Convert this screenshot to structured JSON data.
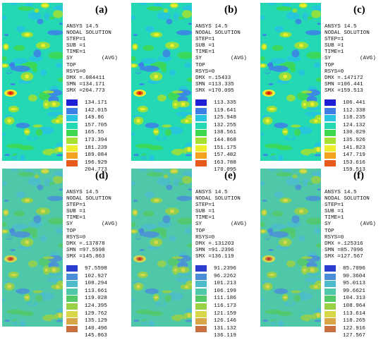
{
  "panels": [
    {
      "label": "(a)",
      "header": [
        "ANSYS 14.5",
        "NODAL SOLUTION",
        "STEP=1",
        "SUB =1",
        "TIME=1"
      ],
      "sy": "SY",
      "avg": "(AVG)",
      "top": "TOP",
      "rsys": "RSYS=0",
      "dmx": "DMX =.084411",
      "smn": "SMN =134.171",
      "smx": "SMX =204.773",
      "legend_values": [
        "134.171",
        "142.015",
        "149.86",
        "157.705",
        "165.55",
        "173.394",
        "181.239",
        "189.084",
        "196.929",
        "204.773"
      ]
    },
    {
      "label": "(b)",
      "header": [
        "ANSYS 14.5",
        "NODAL SOLUTION",
        "STEP=1",
        "SUB =1",
        "TIME=1"
      ],
      "sy": "SY",
      "avg": "(AVG)",
      "top": "TOP",
      "rsys": "RSYS=0",
      "dmx": "DMX =.15433",
      "smn": "SMN =113.335",
      "smx": "SMX =170.095",
      "legend_values": [
        "113.335",
        "119.641",
        "125.948",
        "132.255",
        "138.561",
        "144.868",
        "151.175",
        "157.482",
        "163.788",
        "170.095"
      ]
    },
    {
      "label": "(c)",
      "header": [
        "ANSYS 14.5",
        "NODAL SOLUTION",
        "STEP=1",
        "SUB =1",
        "TIME=1"
      ],
      "sy": "SY",
      "avg": "(AVG)",
      "top": "TOP",
      "rsys": "RSYS=0",
      "dmx": "DMX =.147172",
      "smn": "SMN =106.441",
      "smx": "SMX =159.513",
      "legend_values": [
        "106.441",
        "112.338",
        "118.235",
        "124.132",
        "130.029",
        "135.926",
        "141.823",
        "147.719",
        "153.616",
        "159.513"
      ]
    },
    {
      "label": "(d)",
      "header": [
        "ANSYS 14.5",
        "NODAL SOLUTION",
        "STEP=1",
        "SUB =1",
        "TIME=1"
      ],
      "sy": "SY",
      "avg": "(AVG)",
      "top": "TOP",
      "rsys": "RSYS=0",
      "dmx": "DMX =.137878",
      "smn": "SMN =97.5598",
      "smx": "SMX =145.863",
      "legend_values": [
        "97.5598",
        "102.927",
        "108.294",
        "113.661",
        "119.028",
        "124.395",
        "129.762",
        "135.129",
        "140.496",
        "145.863"
      ]
    },
    {
      "label": "(e)",
      "header": [
        "ANSYS 14.5",
        "NODAL SOLUTION",
        "STEP=1",
        "SUB =1",
        "TIME=1"
      ],
      "sy": "SY",
      "avg": "(AVG)",
      "top": "TOP",
      "rsys": "RSYS=0",
      "dmx": "DMX =.131203",
      "smn": "SMN =91.2396",
      "smx": "SMX =136.119",
      "legend_values": [
        "91.2396",
        "96.2262",
        "101.213",
        "106.199",
        "111.186",
        "116.173",
        "121.159",
        "126.146",
        "131.132",
        "136.119"
      ]
    },
    {
      "label": "(f)",
      "header": [
        "ANSYS 14.5",
        "NODAL SOLUTION",
        "STEP=1",
        "SUB =1",
        "TIME=1"
      ],
      "sy": "SY",
      "avg": "(AVG)",
      "top": "TOP",
      "rsys": "RSYS=0",
      "dmx": "DMX =.125316",
      "smn": "SMN =85.7096",
      "smx": "SMX =127.567",
      "legend_values": [
        "85.7096",
        "90.3604",
        "95.0113",
        "99.6621",
        "104.313",
        "108.964",
        "113.614",
        "118.265",
        "122.916",
        "127.567"
      ]
    }
  ],
  "palette_top": [
    "#1f1fd6",
    "#3e7fe8",
    "#27c3e0",
    "#25d8b4",
    "#3ed84e",
    "#a6e030",
    "#eeee2e",
    "#f2a21e",
    "#e85a1a",
    "#dd1111"
  ],
  "palette_bottom": [
    "#2a3fd0",
    "#4a8ed8",
    "#4cbccc",
    "#4ec8a8",
    "#55c86a",
    "#9ad046",
    "#d8d84a",
    "#d8a648",
    "#c87040",
    "#b83030"
  ]
}
